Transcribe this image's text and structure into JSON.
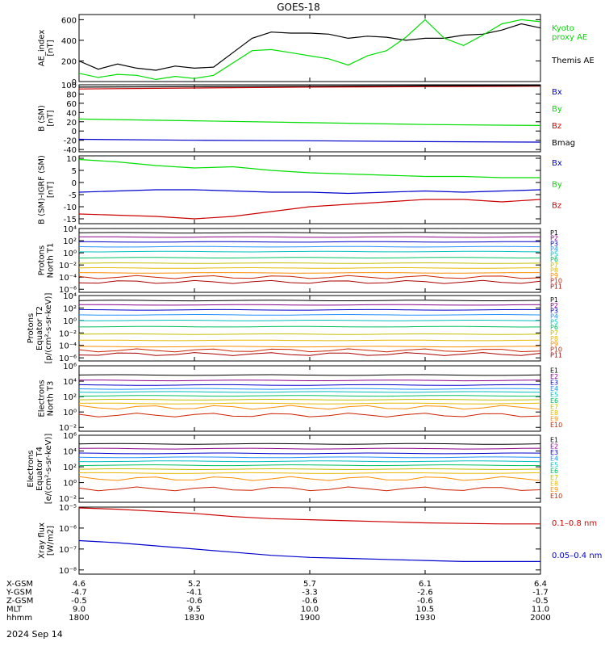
{
  "title": "GOES-18",
  "date_label": "2024 Sep 14",
  "footer": {
    "row_labels": [
      "X-GSM",
      "Y-GSM",
      "Z-GSM",
      "MLT",
      "hhmm"
    ],
    "columns": [
      [
        "4.6",
        "-4.7",
        "-0.5",
        "9.0",
        "1800"
      ],
      [
        "5.2",
        "-4.1",
        "-0.6",
        "9.5",
        "1830"
      ],
      [
        "5.7",
        "-3.3",
        "-0.6",
        "10.0",
        "1900"
      ],
      [
        "6.1",
        "-2.6",
        "-0.6",
        "10.5",
        "1930"
      ],
      [
        "6.4",
        "-1.7",
        "-0.5",
        "11.0",
        "2000"
      ]
    ]
  },
  "colors": {
    "black": "#000000",
    "green": "#00dd00",
    "blue": "#0000cc",
    "red": "#cc0000",
    "p": [
      "#000000",
      "#8b008b",
      "#0000cc",
      "#1e90ff",
      "#00bfbf",
      "#00c060",
      "#c0c000",
      "#e8b800",
      "#ff8c00",
      "#cc2200",
      "#aa0000"
    ]
  },
  "chart_data": [
    {
      "type": "line",
      "name": "ae-panel",
      "ylabel": [
        "AE_index",
        "[nT]"
      ],
      "ylim": [
        0,
        650
      ],
      "yticks": [
        0,
        200,
        400,
        600
      ],
      "tick_labels": [
        "0",
        "200",
        "400",
        "600"
      ],
      "x": [
        1800,
        1805,
        1810,
        1815,
        1820,
        1825,
        1830,
        1835,
        1840,
        1845,
        1850,
        1855,
        1900,
        1905,
        1910,
        1915,
        1920,
        1925,
        1930,
        1935,
        1940,
        1945,
        1950,
        1955,
        2000
      ],
      "series": [
        {
          "name": "Themis AE",
          "color": "black",
          "legend_text": [
            "Themis AE"
          ],
          "values": [
            200,
            120,
            170,
            130,
            110,
            150,
            130,
            140,
            280,
            420,
            480,
            470,
            470,
            460,
            420,
            440,
            430,
            400,
            420,
            420,
            450,
            460,
            500,
            560,
            520
          ]
        },
        {
          "name": "Kyoto proxy AE",
          "color": "green",
          "legend_text": [
            "Kyoto",
            "proxy AE"
          ],
          "values": [
            80,
            40,
            70,
            60,
            20,
            50,
            30,
            60,
            180,
            300,
            310,
            280,
            250,
            220,
            160,
            250,
            300,
            430,
            600,
            420,
            350,
            450,
            560,
            600,
            580
          ]
        }
      ]
    },
    {
      "type": "line",
      "name": "b-sm-panel",
      "ylabel": [
        "B (SM)",
        "[nT]"
      ],
      "ylim": [
        -45,
        100
      ],
      "yticks": [
        -40,
        -20,
        0,
        20,
        40,
        60,
        80,
        100
      ],
      "tick_labels": [
        "-40",
        "-20",
        "0",
        "20",
        "40",
        "60",
        "80",
        "100"
      ],
      "x": [
        1800,
        1830,
        1900,
        1930,
        2000
      ],
      "series": [
        {
          "name": "Bx",
          "color": "blue",
          "values": [
            -18,
            -20,
            -21,
            -23,
            -24
          ]
        },
        {
          "name": "By",
          "color": "green",
          "values": [
            26,
            22,
            18,
            14,
            12
          ]
        },
        {
          "name": "Bz",
          "color": "red",
          "values": [
            91,
            93,
            95,
            96,
            97
          ]
        },
        {
          "name": "Bmag",
          "color": "black",
          "values": [
            95,
            96,
            97,
            98,
            99
          ]
        }
      ]
    },
    {
      "type": "line",
      "name": "b-igrf-panel",
      "ylabel": [
        "B (SM)-IGRF (SM)",
        "[nT]"
      ],
      "ylim": [
        -17,
        11
      ],
      "yticks": [
        -15,
        -10,
        -5,
        0,
        5,
        10
      ],
      "tick_labels": [
        "-15",
        "-10",
        "-5",
        "0",
        "5",
        "10"
      ],
      "x": [
        1800,
        1810,
        1820,
        1830,
        1840,
        1850,
        1900,
        1910,
        1920,
        1930,
        1940,
        1950,
        2000
      ],
      "series": [
        {
          "name": "Bx",
          "color": "blue",
          "values": [
            -4,
            -3.5,
            -3,
            -3,
            -3.5,
            -4,
            -4,
            -4.5,
            -4,
            -3.5,
            -4,
            -3.5,
            -3
          ]
        },
        {
          "name": "By",
          "color": "green",
          "values": [
            9.5,
            8.5,
            7,
            6,
            6.5,
            5,
            4,
            3.5,
            3,
            2.5,
            2.5,
            2,
            2
          ]
        },
        {
          "name": "Bz",
          "color": "red",
          "values": [
            -13,
            -13.5,
            -14,
            -15,
            -14,
            -12,
            -10,
            -9,
            -8,
            -7,
            -7,
            -8,
            -7
          ]
        }
      ]
    },
    {
      "type": "line",
      "name": "protons-north-panel",
      "ylabel": [
        "Protons",
        "North T1"
      ],
      "log": true,
      "ylim_exp": [
        -6.5,
        4
      ],
      "yticks_exp": [
        -6,
        -4,
        -2,
        0,
        2,
        4
      ],
      "tick_labels": [
        "10⁻⁶",
        "10⁻⁴",
        "10⁻²",
        "10⁰",
        "10²",
        "10⁴"
      ],
      "legend": [
        "P1",
        "P2",
        "P3",
        "P4",
        "P5",
        "P6",
        "P7",
        "P8",
        "P9",
        "P10",
        "P11"
      ],
      "levels_exp": [
        3.3,
        2.6,
        1.8,
        1.0,
        0.2,
        -0.8,
        -1.7,
        -2.5,
        -3.3,
        -4.0,
        -4.8
      ]
    },
    {
      "type": "line",
      "name": "protons-equator-panel",
      "ylabel": [
        "Protons",
        "Equator T2",
        "[p/(cm²-s-sr-keV)]"
      ],
      "log": true,
      "ylim_exp": [
        -6.5,
        4
      ],
      "yticks_exp": [
        -6,
        -4,
        -2,
        0,
        2,
        4
      ],
      "tick_labels": [
        "10⁻⁶",
        "10⁻⁴",
        "10⁻²",
        "10⁰",
        "10²",
        "10⁴"
      ],
      "legend": [
        "P1",
        "P2",
        "P3",
        "P4",
        "P5",
        "P6",
        "P7",
        "P8",
        "P9",
        "P10",
        "P11"
      ],
      "levels_exp": [
        3.2,
        2.5,
        1.7,
        0.9,
        0.0,
        -1.0,
        -2.2,
        -3.2,
        -4.2,
        -4.8,
        -5.4
      ]
    },
    {
      "type": "line",
      "name": "electrons-north-panel",
      "ylabel": [
        "Electrons",
        "North T3"
      ],
      "log": true,
      "ylim_exp": [
        -2.5,
        6
      ],
      "yticks_exp": [
        -2,
        0,
        2,
        4,
        6
      ],
      "tick_labels": [
        "10⁻²",
        "10⁰",
        "10²",
        "10⁴",
        "10⁶"
      ],
      "legend": [
        "E1",
        "E2",
        "E3",
        "E4",
        "E5",
        "E6",
        "E7",
        "E8",
        "E9",
        "E10"
      ],
      "levels_exp": [
        4.8,
        4.1,
        3.5,
        3.0,
        2.6,
        2.1,
        1.6,
        1.1,
        0.6,
        -0.4
      ]
    },
    {
      "type": "line",
      "name": "electrons-equator-panel",
      "ylabel": [
        "Electrons",
        "Equator T4",
        "[e/(cm²-s-sr-keV)]"
      ],
      "log": true,
      "ylim_exp": [
        -2.5,
        6
      ],
      "yticks_exp": [
        -2,
        0,
        2,
        4,
        6
      ],
      "tick_labels": [
        "10⁻²",
        "10⁰",
        "10²",
        "10⁴",
        "10⁶"
      ],
      "legend": [
        "E1",
        "E2",
        "E3",
        "E4",
        "E5",
        "E6",
        "E7",
        "E8",
        "E9",
        "E10"
      ],
      "levels_exp": [
        4.9,
        4.3,
        3.7,
        3.2,
        2.7,
        2.2,
        1.7,
        1.2,
        0.5,
        -0.8
      ]
    },
    {
      "type": "line",
      "name": "xray-panel",
      "ylabel": [
        "Xray flux",
        "[W/m2]"
      ],
      "log": true,
      "ylim_exp": [
        -8.2,
        -5
      ],
      "yticks_exp": [
        -8,
        -7,
        -6,
        -5
      ],
      "tick_labels": [
        "10⁻⁸",
        "10⁻⁷",
        "10⁻⁶",
        "10⁻⁵"
      ],
      "x": [
        1800,
        1810,
        1820,
        1830,
        1840,
        1850,
        1900,
        1910,
        1920,
        1930,
        1940,
        1950,
        2000
      ],
      "series": [
        {
          "name": "0.1–0.8 nm",
          "color": "red",
          "values_exp": [
            -5.0,
            -5.1,
            -5.2,
            -5.3,
            -5.45,
            -5.55,
            -5.6,
            -5.65,
            -5.7,
            -5.75,
            -5.78,
            -5.8,
            -5.8
          ]
        },
        {
          "name": "0.05–0.4 nm",
          "color": "blue",
          "values_exp": [
            -6.6,
            -6.7,
            -6.85,
            -7.0,
            -7.15,
            -7.3,
            -7.4,
            -7.45,
            -7.5,
            -7.55,
            -7.6,
            -7.6,
            -7.6
          ]
        }
      ]
    }
  ]
}
